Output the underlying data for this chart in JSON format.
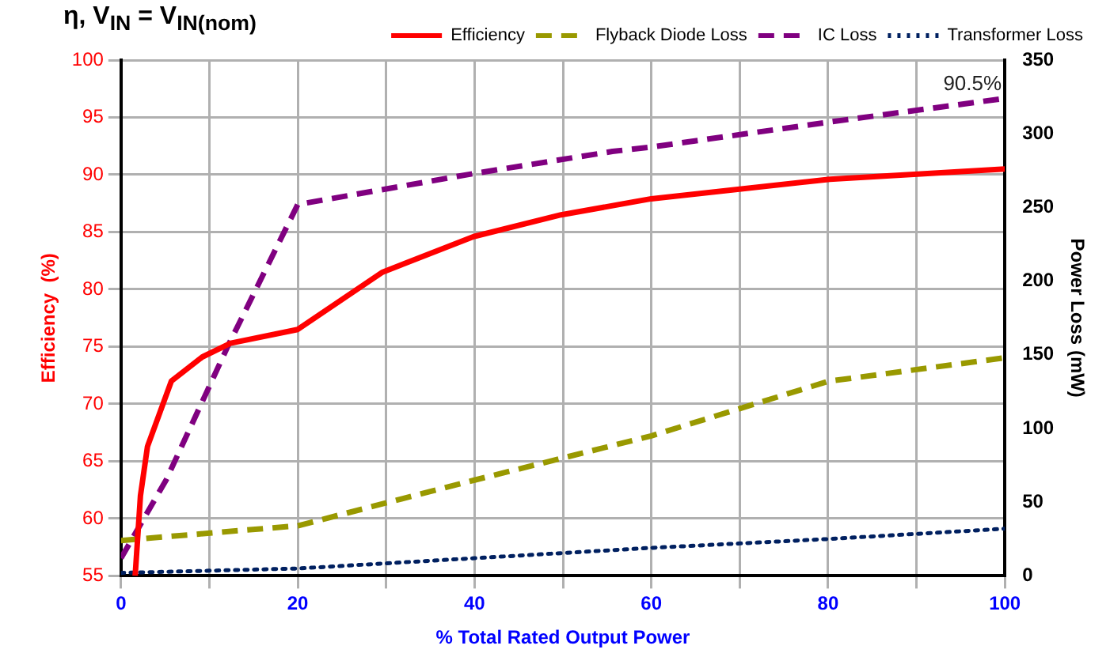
{
  "chart_data": {
    "type": "line",
    "title": "η, V$_{IN}$ = V$_{IN(nom)}$",
    "xlabel": "% Total Rated Output Power",
    "ylabel": "Efficiency  (%)",
    "y2label": "Power Loss (mW)",
    "xlim": [
      0,
      100
    ],
    "xticks": [
      0,
      {
        "value": 10,
        "label": null
      },
      20,
      {
        "value": 30,
        "label": null
      },
      40,
      {
        "value": 50,
        "label": null
      },
      60,
      {
        "value": 70,
        "label": null
      },
      80,
      {
        "value": 90,
        "label": null
      },
      100
    ],
    "ylim": [
      55,
      100
    ],
    "yticks": [
      55,
      60,
      65,
      70,
      75,
      80,
      85,
      90,
      95,
      100
    ],
    "y2lim": [
      0,
      350
    ],
    "y2ticks": [
      0,
      50,
      100,
      150,
      200,
      250,
      300,
      350
    ],
    "grid": true,
    "legend": "top right",
    "marker": "none",
    "annotations": [
      "90.5%"
    ],
    "series": [
      {
        "name": "Efficiency",
        "color": "#ff0000",
        "line_style": "solid",
        "x": [
          1.6,
          2.2,
          3,
          5.7,
          9.2,
          12.4,
          20,
          29.6,
          39.9,
          49.8,
          60,
          80.2,
          100
        ],
        "values": [
          55,
          62,
          66.3,
          72,
          74.1,
          75.3,
          76.5,
          81.5,
          84.6,
          86.5,
          87.9,
          89.6,
          90.5
        ]
      },
      {
        "name": "Flyback Diode Loss",
        "color": "#999900",
        "line_style": "dashed",
        "axis": "y2",
        "x": [
          0,
          20,
          40,
          60,
          80,
          100
        ],
        "values": [
          24,
          34,
          65,
          95,
          132,
          148
        ]
      },
      {
        "name": "IC Loss",
        "color": "#800080",
        "line_style": "dashed",
        "axis": "y2",
        "x": [
          0,
          5.1,
          12.1,
          20,
          39.9,
          55.6,
          60,
          80.2,
          100
        ],
        "values": [
          12,
          65,
          156,
          252,
          273,
          288,
          291,
          308,
          324
        ]
      },
      {
        "name": "Transformer Loss",
        "color": "#002060",
        "line_style": "dotted",
        "axis": "y2",
        "x": [
          0,
          20,
          40,
          60,
          80,
          100
        ],
        "values": [
          2,
          5,
          12,
          19,
          25,
          32
        ]
      }
    ]
  }
}
